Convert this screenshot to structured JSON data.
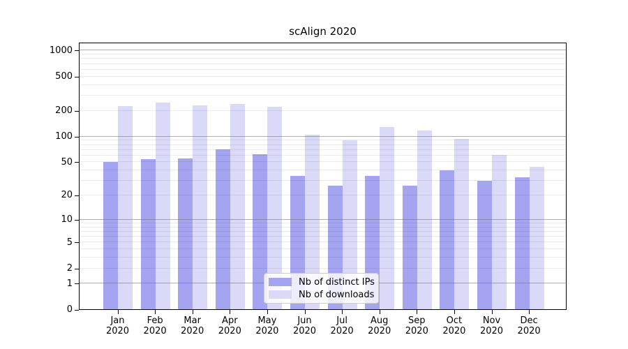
{
  "title": "scAlign 2020",
  "colors": {
    "distinct_ips_bar": "#a4a4f0",
    "downloads_bar": "#dadaf8",
    "grid_major": "#6e6e6e",
    "grid_minor": "#ebebeb",
    "axis_spine": "#000000",
    "legend_border": "#cccccc"
  },
  "legend": {
    "items": [
      {
        "label": "Nb of distinct IPs"
      },
      {
        "label": "Nb of downloads"
      }
    ]
  },
  "chart_data": {
    "type": "bar",
    "title": "scAlign 2020",
    "yscale": "log1p",
    "ylim": [
      0,
      1250
    ],
    "yticks": [
      0,
      1,
      2,
      5,
      10,
      20,
      50,
      100,
      200,
      500,
      1000
    ],
    "grid": true,
    "legend_position": "lower center",
    "xlabel": "",
    "ylabel": "",
    "categories": [
      "Jan 2020",
      "Feb 2020",
      "Mar 2020",
      "Apr 2020",
      "May 2020",
      "Jun 2020",
      "Jul 2020",
      "Aug 2020",
      "Sep 2020",
      "Oct 2020",
      "Nov 2020",
      "Dec 2020"
    ],
    "series": [
      {
        "name": "Nb of distinct IPs",
        "color": "#a4a4f0",
        "values": [
          50,
          54,
          55,
          70,
          62,
          34,
          26,
          34,
          26,
          40,
          30,
          33
        ]
      },
      {
        "name": "Nb of downloads",
        "color": "#dadaf8",
        "values": [
          225,
          249,
          230,
          237,
          220,
          105,
          89,
          127,
          117,
          93,
          60,
          44
        ]
      }
    ]
  }
}
